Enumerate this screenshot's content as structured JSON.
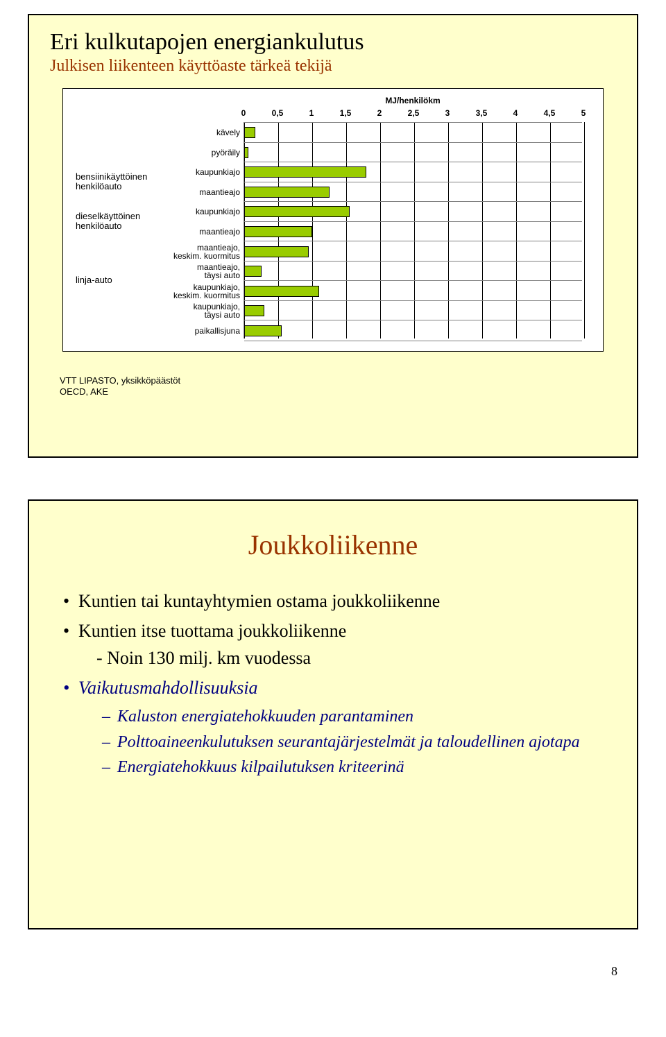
{
  "page_number": "8",
  "slide1": {
    "title": "Eri kulkutapojen energiankulutus",
    "subtitle": "Julkisen liikenteen käyttöaste tärkeä tekijä",
    "source_line1": "VTT LIPASTO, yksikköpäästöt",
    "source_line2": "OECD, AKE",
    "chart": {
      "type": "bar",
      "x_title": "MJ/henkilökm",
      "xlim": [
        0,
        5
      ],
      "xticks": [
        "0",
        "0,5",
        "1",
        "1,5",
        "2",
        "2,5",
        "3",
        "3,5",
        "4",
        "4,5",
        "5"
      ],
      "background_color": "#ffffff",
      "grid_color": "#000000",
      "row_border_color": "#808080",
      "bar_fill": "#99cc00",
      "bar_border": "#000000",
      "label_fontsize": 12,
      "groups": [
        {
          "label": "bensiinikäyttöinen\nhenkilöauto",
          "row_span": [
            2,
            3
          ]
        },
        {
          "label": "dieselkäyttöinen\nhenkilöauto",
          "row_span": [
            4,
            5
          ]
        },
        {
          "label": "linja-auto",
          "row_span": [
            6,
            9
          ]
        }
      ],
      "rows": [
        {
          "label": "kävely",
          "value": 0.16
        },
        {
          "label": "pyöräily",
          "value": 0.06
        },
        {
          "label": "kaupunkiajo",
          "value": 1.8
        },
        {
          "label": "maantieajo",
          "value": 1.25
        },
        {
          "label": "kaupunkiajo",
          "value": 1.55
        },
        {
          "label": "maantieajo",
          "value": 1.0
        },
        {
          "label": "maantieajo,\nkeskim. kuormitus",
          "value": 0.95
        },
        {
          "label": "maantieajo,\ntäysi auto",
          "value": 0.25
        },
        {
          "label": "kaupunkiajo,\nkeskim. kuormitus",
          "value": 1.1
        },
        {
          "label": "kaupunkiajo,\ntäysi auto",
          "value": 0.3
        },
        {
          "label": "paikallisjuna",
          "value": 0.55
        }
      ]
    }
  },
  "slide2": {
    "title": "Joukkoliikenne",
    "bullets": [
      {
        "level": 1,
        "text": "Kuntien tai kuntayhtymien ostama joukkoliikenne"
      },
      {
        "level": 1,
        "text": "Kuntien itse tuottama joukkoliikenne",
        "cont": "- Noin 130 milj. km vuodessa"
      },
      {
        "level": 1,
        "text": "Vaikutusmahdollisuuksia",
        "italic": true
      },
      {
        "level": 2,
        "text": "Kaluston energiatehokkuuden parantaminen"
      },
      {
        "level": 2,
        "text": "Polttoaineenkulutuksen seurantajärjestelmät ja taloudellinen ajotapa"
      },
      {
        "level": 2,
        "text": "Energiatehokkuus kilpailutuksen kriteerinä"
      }
    ]
  }
}
